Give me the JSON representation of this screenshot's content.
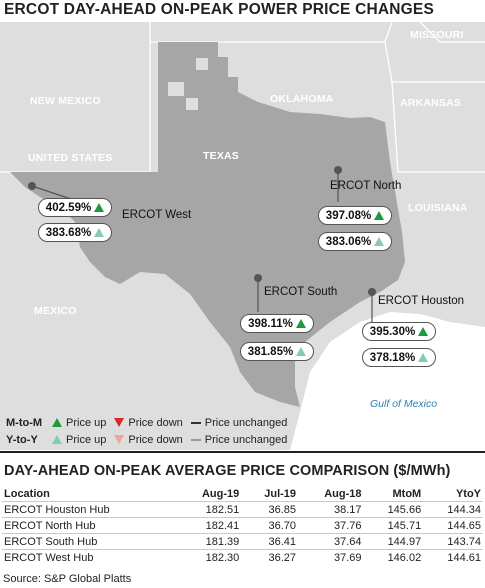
{
  "title": "ERCOT DAY-AHEAD ON-PEAK POWER PRICE CHANGES",
  "map": {
    "regions": {
      "missouri": "MISSOURI",
      "new_mexico": "NEW MEXICO",
      "oklahoma": "OKLAHOMA",
      "arkansas": "ARKANSAS",
      "united_states": "UNITED STATES",
      "texas": "TEXAS",
      "louisiana": "LOUISIANA",
      "mexico": "MEXICO"
    },
    "water": "Gulf of Mexico",
    "colors": {
      "land": "#dedede",
      "texas": "#a6a6a6",
      "water": "#ffffff",
      "up": "#1e9a3e",
      "up_light": "#86c9b6",
      "down": "#d42a2a",
      "down_light": "#f0a49a"
    },
    "hubs": [
      {
        "name": "ERCOT West",
        "mtom": "402.59%",
        "ytoy": "383.68%"
      },
      {
        "name": "ERCOT North",
        "mtom": "397.08%",
        "ytoy": "383.06%"
      },
      {
        "name": "ERCOT South",
        "mtom": "398.11%",
        "ytoy": "381.85%"
      },
      {
        "name": "ERCOT Houston",
        "mtom": "395.30%",
        "ytoy": "378.18%"
      }
    ]
  },
  "legend": {
    "mtom_label": "M-to-M",
    "ytoy_label": "Y-to-Y",
    "up": "Price up",
    "down": "Price down",
    "unchanged": "Price unchanged"
  },
  "table": {
    "title": "DAY-AHEAD ON-PEAK AVERAGE PRICE COMPARISON ($/MWh)",
    "headers": [
      "Location",
      "Aug-19",
      "Jul-19",
      "Aug-18",
      "MtoM",
      "YtoY"
    ],
    "rows": [
      [
        "ERCOT Houston Hub",
        "182.51",
        "36.85",
        "38.17",
        "145.66",
        "144.34"
      ],
      [
        "ERCOT North Hub",
        "182.41",
        "36.70",
        "37.76",
        "145.71",
        "144.65"
      ],
      [
        "ERCOT South Hub",
        "181.39",
        "36.41",
        "37.64",
        "144.97",
        "143.74"
      ],
      [
        "ERCOT West Hub",
        "182.30",
        "36.27",
        "37.69",
        "146.02",
        "144.61"
      ]
    ]
  },
  "source": "Source: S&P Global Platts"
}
